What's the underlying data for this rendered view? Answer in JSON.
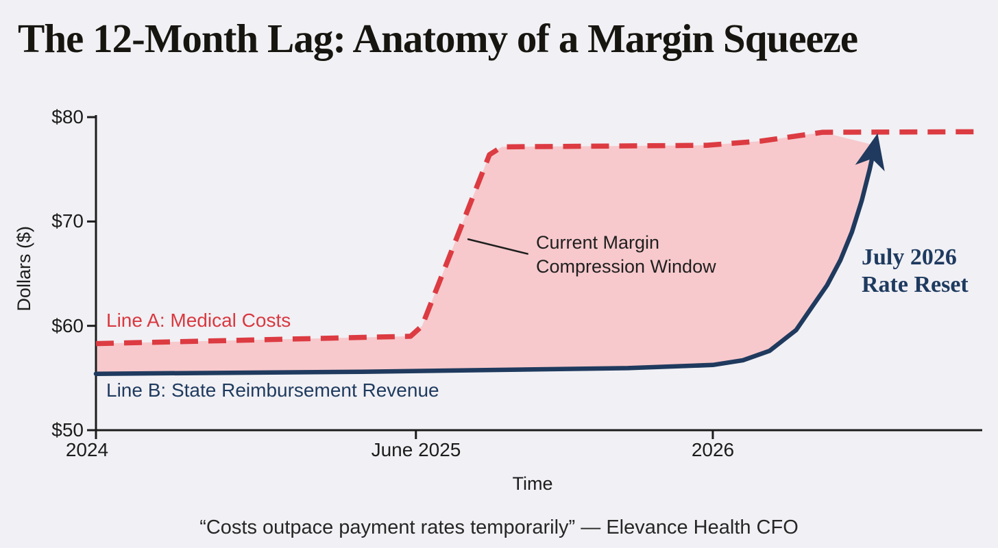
{
  "page": {
    "title": "The 12-Month Lag: Anatomy of a Margin Squeeze",
    "footer_quote": "“Costs outpace payment rates temporarily” — Elevance Health CFO"
  },
  "chart_data": {
    "type": "line",
    "title": "The 12-Month Lag: Anatomy of a Margin Squeeze",
    "xlabel": "Time",
    "ylabel": "Dollars ($)",
    "ylim": [
      50,
      80
    ],
    "grid": false,
    "axis_color": "#1c1c1c",
    "background_color": "#f1f0f4",
    "x_axis_note": "stylized non-linear time axis; x positions are fractions of axis width",
    "y_ticks": [
      {
        "label": "$80",
        "value": 80
      },
      {
        "label": "$70",
        "value": 70
      },
      {
        "label": "$60",
        "value": 60
      },
      {
        "label": "$50",
        "value": 50
      }
    ],
    "x_ticks": [
      {
        "label": "2024",
        "pos": 0.0
      },
      {
        "label": "June 2025",
        "pos": 0.361
      },
      {
        "label": "2026",
        "pos": 0.696
      }
    ],
    "series": [
      {
        "name": "Line A: Medical Costs",
        "color": "#dc3b42",
        "style": "dashed",
        "width": 7.5,
        "points_xfrac_usd": [
          [
            0.0,
            58.3
          ],
          [
            0.18,
            58.65
          ],
          [
            0.355,
            59.0
          ],
          [
            0.368,
            60.0
          ],
          [
            0.444,
            76.4
          ],
          [
            0.458,
            77.15
          ],
          [
            0.689,
            77.3
          ],
          [
            0.75,
            77.7
          ],
          [
            0.82,
            78.55
          ],
          [
            1.0,
            78.6
          ]
        ]
      },
      {
        "name": "Line B: State Reimbursement Revenue",
        "color": "#1f3a5e",
        "style": "solid",
        "width": 6.5,
        "arrow_end": true,
        "points_xfrac_usd": [
          [
            0.0,
            55.4
          ],
          [
            0.3,
            55.6
          ],
          [
            0.6,
            55.95
          ],
          [
            0.696,
            56.25
          ],
          [
            0.73,
            56.7
          ],
          [
            0.76,
            57.6
          ],
          [
            0.79,
            59.6
          ],
          [
            0.807,
            61.7
          ],
          [
            0.825,
            63.9
          ],
          [
            0.84,
            66.3
          ],
          [
            0.853,
            69.0
          ],
          [
            0.864,
            72.0
          ],
          [
            0.873,
            75.0
          ],
          [
            0.879,
            77.3
          ]
        ]
      }
    ],
    "fill_between": {
      "between": [
        "Line A: Medical Costs",
        "Line B: State Reimbursement Revenue"
      ],
      "color": "#f7c9cc"
    },
    "annotations": {
      "margin_window": {
        "line1": "Current Margin",
        "line2": "Compression Window",
        "leader_from": [
          0.42,
          68.3
        ],
        "leader_to": [
          0.487,
          66.9
        ],
        "leader_color": "#1f1f1f"
      },
      "rate_reset": {
        "line1": "July 2026",
        "line2": "Rate Reset"
      }
    }
  }
}
